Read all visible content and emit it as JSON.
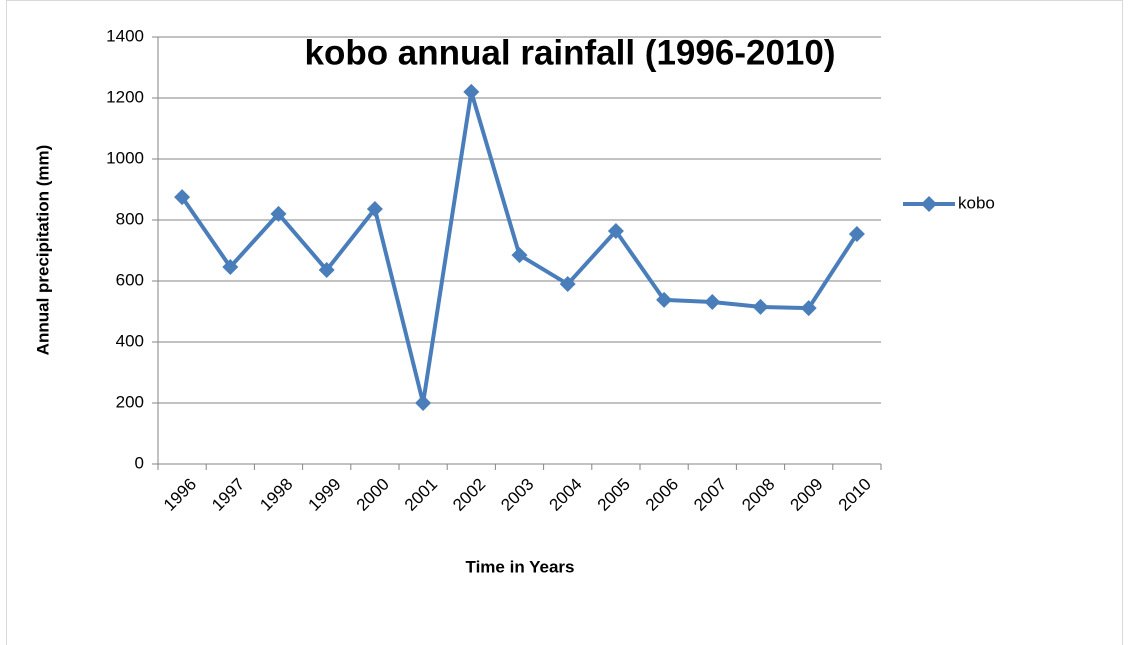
{
  "chart_data": {
    "type": "line",
    "title": "kobo annual rainfall (1996-2010)",
    "x_label": "Time in Years",
    "y_label": "Annual precipitation (mm)",
    "categories": [
      "1996",
      "1997",
      "1998",
      "1999",
      "2000",
      "2001",
      "2002",
      "2003",
      "2004",
      "2005",
      "2006",
      "2007",
      "2008",
      "2009",
      "2010"
    ],
    "series": [
      {
        "name": "kobo",
        "color": "#4a7ebb",
        "values": [
          875,
          646,
          820,
          636,
          836,
          200,
          1220,
          685,
          590,
          764,
          538,
          531,
          515,
          511,
          754
        ]
      }
    ],
    "ylim": [
      0,
      1400
    ],
    "yticks": [
      0,
      200,
      400,
      600,
      800,
      1000,
      1200,
      1400
    ],
    "grid": true,
    "legend": "right"
  }
}
